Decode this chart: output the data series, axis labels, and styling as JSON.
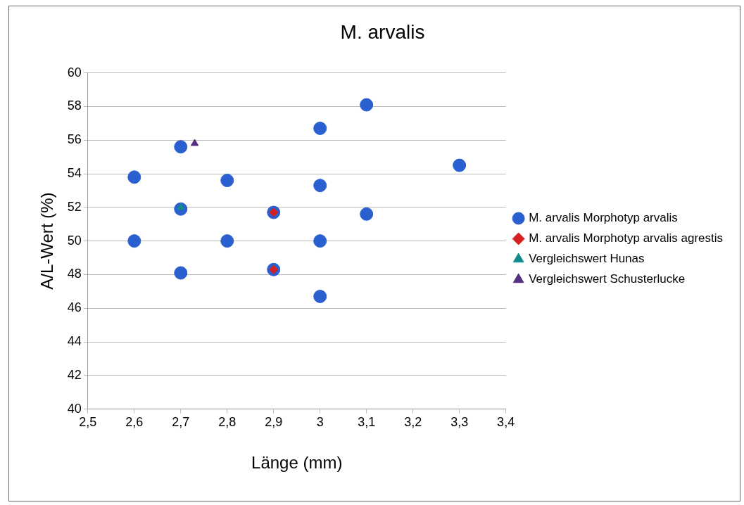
{
  "chart_data": {
    "type": "scatter",
    "title": "M. arvalis",
    "xlabel": "Länge (mm)",
    "ylabel": "A/L-Wert (%)",
    "xlim": [
      2.5,
      3.4
    ],
    "xticks": [
      {
        "value": 2.5,
        "label": "2,5"
      },
      {
        "value": 2.6,
        "label": "2,6"
      },
      {
        "value": 2.7,
        "label": "2,7"
      },
      {
        "value": 2.8,
        "label": "2,8"
      },
      {
        "value": 2.9,
        "label": "2,9"
      },
      {
        "value": 3,
        "label": "3"
      },
      {
        "value": 3.1,
        "label": "3,1"
      },
      {
        "value": 3.2,
        "label": "3,2"
      },
      {
        "value": 3.3,
        "label": "3,3"
      },
      {
        "value": 3.4,
        "label": "3,4"
      }
    ],
    "ylim": [
      40,
      60
    ],
    "yticks": [
      40,
      42,
      44,
      46,
      48,
      50,
      52,
      54,
      56,
      58,
      60
    ],
    "grid": "y",
    "legend": "right",
    "series": [
      {
        "name": "M. arvalis Morphotyp arvalis",
        "color": "#2a5fd0",
        "marker": "circle",
        "x": [
          2.6,
          2.6,
          2.7,
          2.7,
          2.7,
          2.8,
          2.8,
          2.9,
          2.9,
          3,
          3,
          3,
          3,
          3.1,
          3.1,
          3.3
        ],
        "values": [
          53.8,
          50,
          55.6,
          51.9,
          48.1,
          53.6,
          50,
          51.7,
          48.3,
          56.7,
          53.3,
          50,
          46.7,
          58.1,
          51.6,
          54.5
        ]
      },
      {
        "name": "M. arvalis Morphotyp arvalis agrestis",
        "color": "#d42020",
        "marker": "diamond",
        "x": [
          2.9,
          2.9
        ],
        "values": [
          51.7,
          48.3
        ]
      },
      {
        "name": "Vergleichswert Hunas",
        "color": "#138a8a",
        "marker": "triangle",
        "x": [
          2.7
        ],
        "values": [
          52
        ]
      },
      {
        "name": "Vergleichswert Schusterlucke",
        "color": "#553080",
        "marker": "triangle",
        "x": [
          2.73
        ],
        "values": [
          55.8
        ]
      }
    ]
  }
}
